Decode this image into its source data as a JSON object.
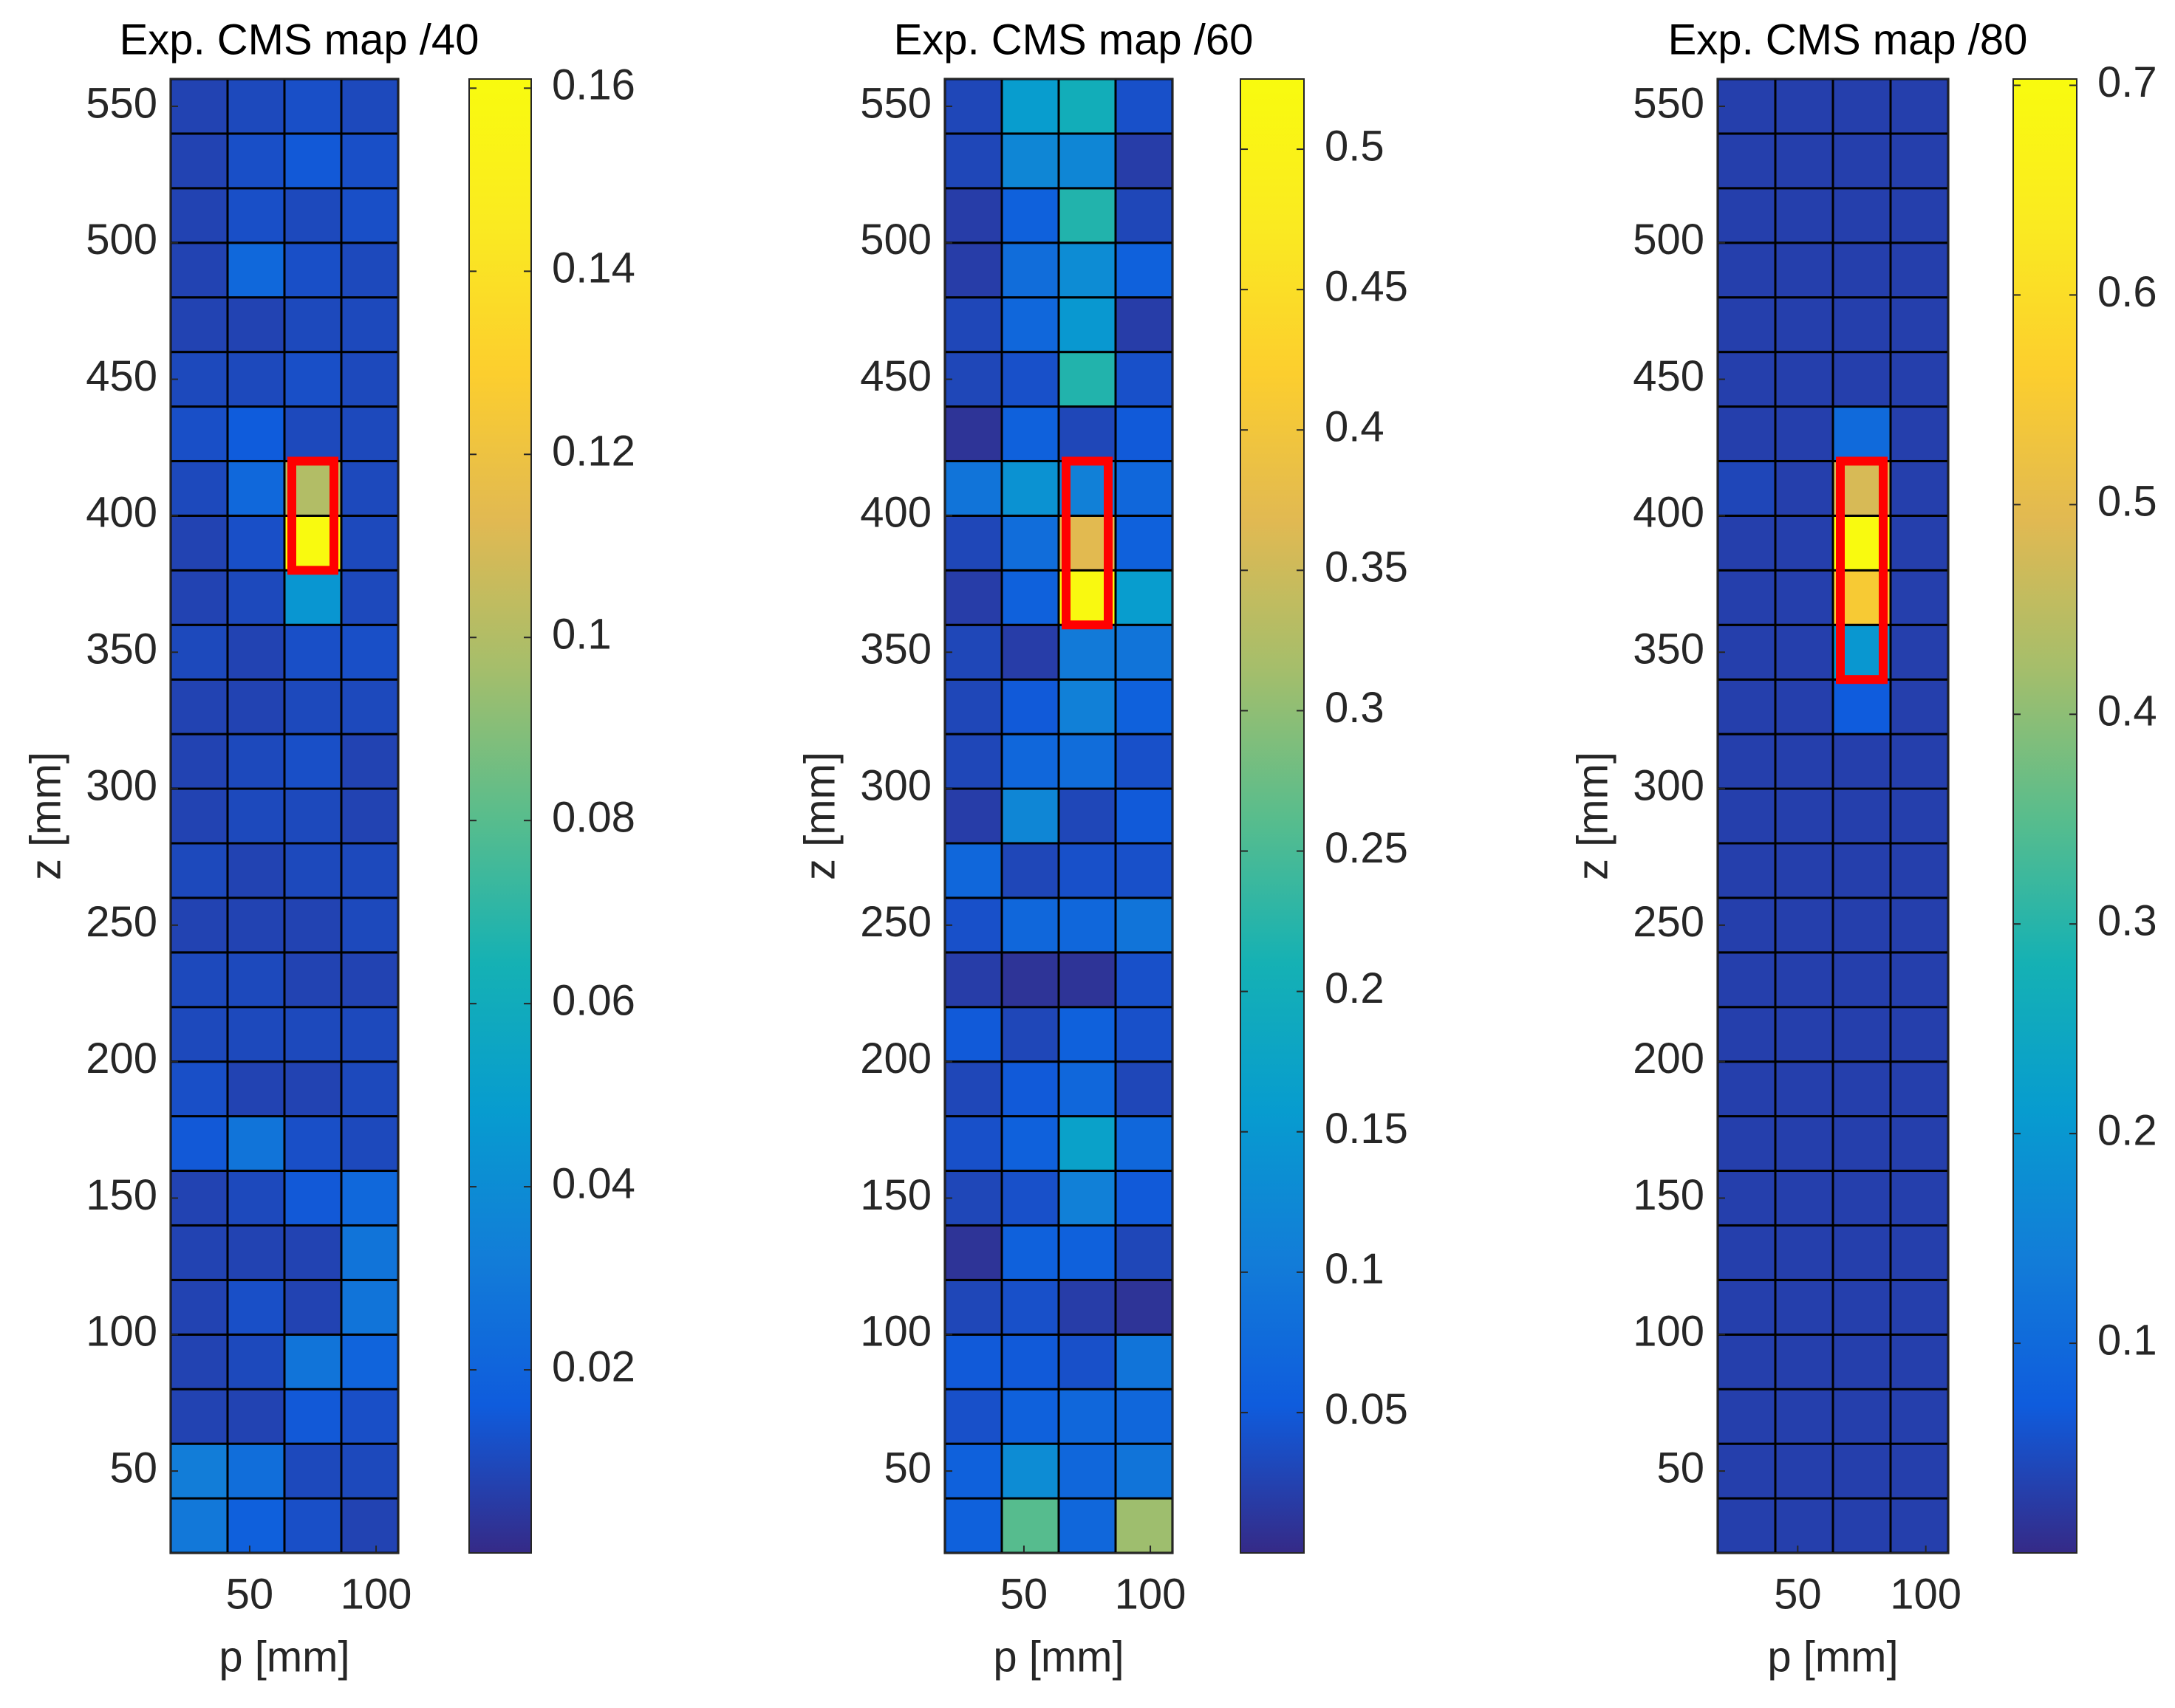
{
  "chart_data": [
    {
      "type": "heatmap",
      "title": "Exp. CMS map /40",
      "xlabel": "p [mm]",
      "ylabel": "z [mm]",
      "colormap": "parula",
      "x": [
        30,
        52.5,
        75,
        97.5
      ],
      "y": [
        30,
        50,
        70,
        90,
        110,
        130,
        150,
        170,
        190,
        210,
        230,
        250,
        270,
        290,
        310,
        330,
        350,
        370,
        390,
        410,
        430,
        450,
        470,
        490,
        510,
        530,
        550
      ],
      "xlim": [
        18.75,
        108.75
      ],
      "ylim": [
        20,
        560
      ],
      "xticks": [
        50,
        100
      ],
      "yticks": [
        50,
        100,
        150,
        200,
        250,
        300,
        350,
        400,
        450,
        500,
        550
      ],
      "clim": [
        0,
        0.161
      ],
      "cticks": [
        0.02,
        0.04,
        0.06,
        0.08,
        0.1,
        0.12,
        0.14,
        0.16
      ],
      "highlight": {
        "xlim": [
          63.75,
          86.25
        ],
        "ylim": [
          380,
          420
        ],
        "color": "#ff0000"
      },
      "values": [
        [
          0.03,
          0.018,
          0.012,
          0.008
        ],
        [
          0.032,
          0.025,
          0.01,
          0.01
        ],
        [
          0.008,
          0.008,
          0.015,
          0.012
        ],
        [
          0.008,
          0.01,
          0.028,
          0.02
        ],
        [
          0.008,
          0.012,
          0.008,
          0.028
        ],
        [
          0.008,
          0.008,
          0.008,
          0.028
        ],
        [
          0.008,
          0.01,
          0.015,
          0.022
        ],
        [
          0.015,
          0.028,
          0.012,
          0.01
        ],
        [
          0.012,
          0.008,
          0.008,
          0.01
        ],
        [
          0.01,
          0.01,
          0.01,
          0.01
        ],
        [
          0.01,
          0.01,
          0.008,
          0.008
        ],
        [
          0.008,
          0.008,
          0.008,
          0.01
        ],
        [
          0.01,
          0.008,
          0.01,
          0.01
        ],
        [
          0.008,
          0.01,
          0.01,
          0.008
        ],
        [
          0.008,
          0.01,
          0.012,
          0.008
        ],
        [
          0.008,
          0.008,
          0.01,
          0.01
        ],
        [
          0.01,
          0.008,
          0.012,
          0.012
        ],
        [
          0.008,
          0.01,
          0.045,
          0.01
        ],
        [
          0.008,
          0.012,
          0.16,
          0.01
        ],
        [
          0.01,
          0.022,
          0.1,
          0.01
        ],
        [
          0.012,
          0.016,
          0.01,
          0.01
        ],
        [
          0.01,
          0.01,
          0.012,
          0.01
        ],
        [
          0.008,
          0.008,
          0.01,
          0.01
        ],
        [
          0.008,
          0.022,
          0.012,
          0.01
        ],
        [
          0.008,
          0.012,
          0.01,
          0.012
        ],
        [
          0.008,
          0.012,
          0.015,
          0.012
        ],
        [
          0.008,
          0.01,
          0.012,
          0.01
        ]
      ]
    },
    {
      "type": "heatmap",
      "title": "Exp. CMS map /60",
      "xlabel": "p [mm]",
      "ylabel": "z [mm]",
      "colormap": "parula",
      "x": [
        30,
        52.5,
        75,
        97.5
      ],
      "y": [
        30,
        50,
        70,
        90,
        110,
        130,
        150,
        170,
        190,
        210,
        230,
        250,
        270,
        290,
        310,
        330,
        350,
        370,
        390,
        410,
        430,
        450,
        470,
        490,
        510,
        530,
        550
      ],
      "xlim": [
        18.75,
        108.75
      ],
      "ylim": [
        20,
        560
      ],
      "xticks": [
        50,
        100
      ],
      "yticks": [
        50,
        100,
        150,
        200,
        250,
        300,
        350,
        400,
        450,
        500,
        550
      ],
      "clim": [
        0,
        0.525
      ],
      "cticks": [
        0.05,
        0.1,
        0.15,
        0.2,
        0.25,
        0.3,
        0.35,
        0.4,
        0.45,
        0.5
      ],
      "highlight": {
        "xlim": [
          63.75,
          86.25
        ],
        "ylim": [
          360,
          420
        ],
        "color": "#ff0000"
      },
      "values": [
        [
          0.06,
          0.26,
          0.07,
          0.31
        ],
        [
          0.06,
          0.13,
          0.07,
          0.09
        ],
        [
          0.04,
          0.06,
          0.07,
          0.07
        ],
        [
          0.05,
          0.05,
          0.04,
          0.09
        ],
        [
          0.03,
          0.04,
          0.02,
          0.01
        ],
        [
          0.01,
          0.06,
          0.06,
          0.03
        ],
        [
          0.03,
          0.04,
          0.11,
          0.05
        ],
        [
          0.04,
          0.06,
          0.17,
          0.07
        ],
        [
          0.03,
          0.05,
          0.07,
          0.03
        ],
        [
          0.05,
          0.03,
          0.06,
          0.04
        ],
        [
          0.02,
          0.01,
          0.01,
          0.04
        ],
        [
          0.04,
          0.07,
          0.07,
          0.09
        ],
        [
          0.07,
          0.03,
          0.04,
          0.04
        ],
        [
          0.02,
          0.12,
          0.03,
          0.05
        ],
        [
          0.03,
          0.07,
          0.08,
          0.04
        ],
        [
          0.03,
          0.05,
          0.11,
          0.06
        ],
        [
          0.03,
          0.02,
          0.1,
          0.09
        ],
        [
          0.02,
          0.06,
          0.52,
          0.16
        ],
        [
          0.03,
          0.08,
          0.37,
          0.06
        ],
        [
          0.09,
          0.14,
          0.11,
          0.07
        ],
        [
          0.01,
          0.06,
          0.03,
          0.05
        ],
        [
          0.03,
          0.04,
          0.22,
          0.04
        ],
        [
          0.03,
          0.07,
          0.15,
          0.02
        ],
        [
          0.02,
          0.08,
          0.13,
          0.06
        ],
        [
          0.02,
          0.06,
          0.22,
          0.03
        ],
        [
          0.03,
          0.12,
          0.12,
          0.02
        ],
        [
          0.03,
          0.16,
          0.2,
          0.04
        ]
      ]
    },
    {
      "type": "heatmap",
      "title": "Exp. CMS map /80",
      "xlabel": "p [mm]",
      "ylabel": "z [mm]",
      "colormap": "parula",
      "x": [
        30,
        52.5,
        75,
        97.5
      ],
      "y": [
        30,
        50,
        70,
        90,
        110,
        130,
        150,
        170,
        190,
        210,
        230,
        250,
        270,
        290,
        310,
        330,
        350,
        370,
        390,
        410,
        430,
        450,
        470,
        490,
        510,
        530,
        550
      ],
      "xlim": [
        18.75,
        108.75
      ],
      "ylim": [
        20,
        560
      ],
      "xticks": [
        50,
        100
      ],
      "yticks": [
        50,
        100,
        150,
        200,
        250,
        300,
        350,
        400,
        450,
        500,
        550
      ],
      "clim": [
        0,
        0.703
      ],
      "cticks": [
        0.1,
        0.2,
        0.3,
        0.4,
        0.5,
        0.6,
        0.7
      ],
      "highlight": {
        "xlim": [
          63.75,
          86.25
        ],
        "ylim": [
          340,
          420
        ],
        "color": "#ff0000"
      },
      "values": [
        [
          0.03,
          0.03,
          0.03,
          0.03
        ],
        [
          0.03,
          0.03,
          0.03,
          0.03
        ],
        [
          0.03,
          0.03,
          0.03,
          0.03
        ],
        [
          0.03,
          0.03,
          0.03,
          0.03
        ],
        [
          0.03,
          0.03,
          0.03,
          0.03
        ],
        [
          0.03,
          0.03,
          0.03,
          0.03
        ],
        [
          0.03,
          0.03,
          0.03,
          0.03
        ],
        [
          0.03,
          0.03,
          0.03,
          0.03
        ],
        [
          0.03,
          0.03,
          0.03,
          0.03
        ],
        [
          0.03,
          0.03,
          0.03,
          0.03
        ],
        [
          0.03,
          0.03,
          0.03,
          0.03
        ],
        [
          0.03,
          0.03,
          0.03,
          0.03
        ],
        [
          0.03,
          0.03,
          0.03,
          0.03
        ],
        [
          0.03,
          0.03,
          0.03,
          0.03
        ],
        [
          0.03,
          0.03,
          0.03,
          0.03
        ],
        [
          0.03,
          0.03,
          0.07,
          0.03
        ],
        [
          0.03,
          0.03,
          0.2,
          0.03
        ],
        [
          0.03,
          0.03,
          0.55,
          0.03
        ],
        [
          0.03,
          0.03,
          0.7,
          0.03
        ],
        [
          0.04,
          0.03,
          0.48,
          0.03
        ],
        [
          0.03,
          0.03,
          0.1,
          0.03
        ],
        [
          0.03,
          0.03,
          0.03,
          0.03
        ],
        [
          0.03,
          0.03,
          0.03,
          0.03
        ],
        [
          0.03,
          0.03,
          0.03,
          0.03
        ],
        [
          0.03,
          0.03,
          0.03,
          0.03
        ],
        [
          0.03,
          0.03,
          0.03,
          0.03
        ],
        [
          0.03,
          0.03,
          0.03,
          0.03
        ]
      ]
    }
  ]
}
